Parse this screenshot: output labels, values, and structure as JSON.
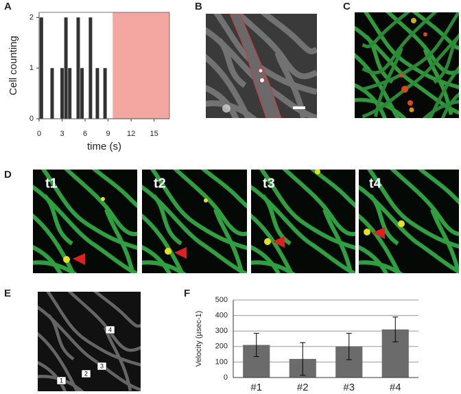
{
  "panels": [
    "A",
    "B",
    "C",
    "D",
    "E",
    "F"
  ],
  "annotations": {
    "d_times": [
      "t1",
      "t2",
      "t3",
      "t4"
    ],
    "e_vessels": [
      "1",
      "2",
      "3",
      "4"
    ]
  },
  "chart_data": [
    {
      "type": "bar",
      "x_label": "time (s)",
      "y_label": "Cell counting",
      "x": [
        0.3,
        1.7,
        3.0,
        3.5,
        4.0,
        5.1,
        5.6,
        6.7,
        7.6,
        8.6
      ],
      "values": [
        2,
        1,
        1,
        2,
        1,
        2,
        1,
        2,
        1,
        1
      ],
      "color": "#333333",
      "xlim": [
        0,
        17
      ],
      "xticks": [
        0,
        3,
        6,
        9,
        12,
        15
      ],
      "ylim": [
        0,
        2.1
      ],
      "yticks": [
        0,
        1,
        2
      ],
      "shaded_region": {
        "x": [
          9.6,
          17
        ],
        "color": "#f4a6a0"
      }
    },
    {
      "type": "bar",
      "y_label": "Velocity (µsec-1)",
      "categories": [
        "#1",
        "#2",
        "#3",
        "#4"
      ],
      "values": [
        210,
        120,
        200,
        310
      ],
      "errors": [
        75,
        105,
        85,
        80
      ],
      "color": "#6b6b6b",
      "ylim": [
        0,
        500
      ],
      "yticks": [
        0,
        100,
        200,
        300,
        400,
        500
      ],
      "grid": true
    }
  ]
}
